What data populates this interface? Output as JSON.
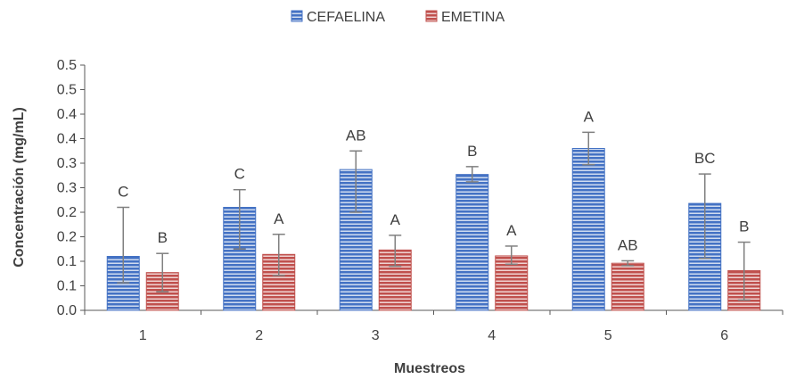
{
  "chart_data": {
    "type": "bar",
    "title": "",
    "xlabel": "Muestreos",
    "ylabel": "Concentración (mg/mL)",
    "categories": [
      "1",
      "2",
      "3",
      "4",
      "5",
      "6"
    ],
    "ylim": [
      0,
      0.5
    ],
    "ytick_values": [
      0.0,
      0.05,
      0.1,
      0.15,
      0.2,
      0.25,
      0.3,
      0.35,
      0.4,
      0.45,
      0.5
    ],
    "ytick_labels": [
      "0.0",
      "0.1",
      "0.1",
      "0.2",
      "0.2",
      "0.3",
      "0.3",
      "0.4",
      "0.4",
      "0.5",
      "0.5"
    ],
    "legend_position": "top-center",
    "grid": false,
    "series": [
      {
        "name": "CEFAELINA",
        "color": "#4472C4",
        "values": [
          0.11,
          0.21,
          0.287,
          0.277,
          0.33,
          0.218
        ],
        "error_low": [
          0.056,
          0.125,
          0.2,
          0.262,
          0.297,
          0.106
        ],
        "error_high": [
          0.21,
          0.246,
          0.325,
          0.293,
          0.363,
          0.278
        ],
        "labels": [
          "C",
          "C",
          "AB",
          "B",
          "A",
          "BC"
        ]
      },
      {
        "name": "EMETINA",
        "color": "#C0504D",
        "values": [
          0.077,
          0.114,
          0.123,
          0.111,
          0.096,
          0.081
        ],
        "error_low": [
          0.038,
          0.071,
          0.09,
          0.094,
          0.091,
          0.021
        ],
        "error_high": [
          0.116,
          0.155,
          0.153,
          0.131,
          0.101,
          0.139
        ],
        "labels": [
          "B",
          "A",
          "A",
          "A",
          "AB",
          "B"
        ]
      }
    ]
  }
}
